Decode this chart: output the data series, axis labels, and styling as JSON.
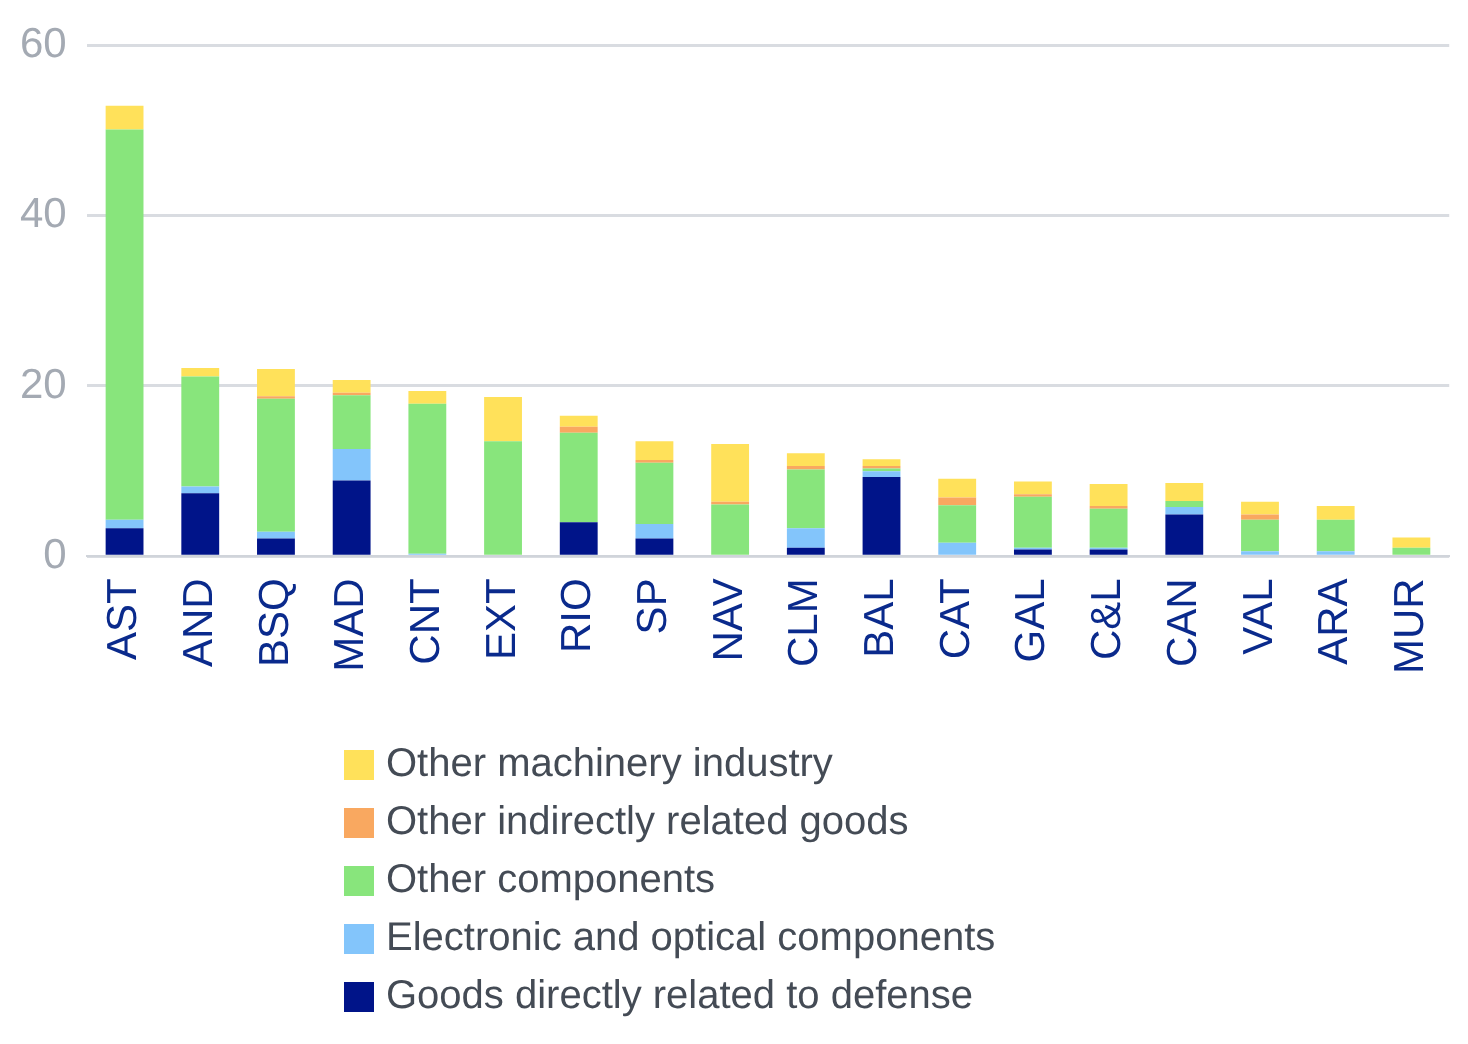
{
  "chart_data": {
    "type": "bar",
    "stacked": true,
    "categories": [
      "AST",
      "AND",
      "BSQ",
      "MAD",
      "CNT",
      "EXT",
      "RIO",
      "SP",
      "NAV",
      "CLM",
      "BAL",
      "CAT",
      "GAL",
      "C&L",
      "CAN",
      "VAL",
      "ARA",
      "MUR"
    ],
    "series": [
      {
        "name": "Goods directly related to defense",
        "color": "#001489",
        "values": [
          3.3,
          7.4,
          2.1,
          8.9,
          0,
          0,
          4.0,
          2.1,
          0,
          1.0,
          9.3,
          0,
          0.8,
          0.8,
          4.9,
          0,
          0,
          0
        ]
      },
      {
        "name": "Electronic and optical components",
        "color": "#83c5fb",
        "values": [
          1.0,
          0.8,
          0.8,
          3.7,
          0.3,
          0,
          0,
          1.7,
          0,
          2.3,
          0.7,
          1.6,
          0.2,
          0.2,
          0.9,
          0.6,
          0.6,
          0
        ]
      },
      {
        "name": "Other components",
        "color": "#88e57c",
        "values": [
          45.8,
          12.9,
          15.6,
          6.3,
          17.6,
          13.5,
          10.5,
          7.2,
          6.1,
          6.9,
          0.3,
          4.4,
          6.0,
          4.6,
          0.7,
          3.7,
          3.7,
          1.0
        ]
      },
      {
        "name": "Other indirectly related goods",
        "color": "#f9a860",
        "values": [
          0,
          0,
          0.3,
          0.3,
          0,
          0,
          0.7,
          0.3,
          0.3,
          0.4,
          0.3,
          0.9,
          0.3,
          0.3,
          0,
          0.6,
          0,
          0
        ]
      },
      {
        "name": "Other machinery industry",
        "color": "#ffe15a",
        "values": [
          2.8,
          1.0,
          3.2,
          1.5,
          1.5,
          5.2,
          1.3,
          2.2,
          6.8,
          1.5,
          0.8,
          2.2,
          1.5,
          2.6,
          2.1,
          1.5,
          1.6,
          1.2
        ]
      }
    ],
    "ylim": [
      0,
      60
    ],
    "yticks": [
      0,
      20,
      40,
      60
    ],
    "grid": "y",
    "legend": "bottom"
  }
}
